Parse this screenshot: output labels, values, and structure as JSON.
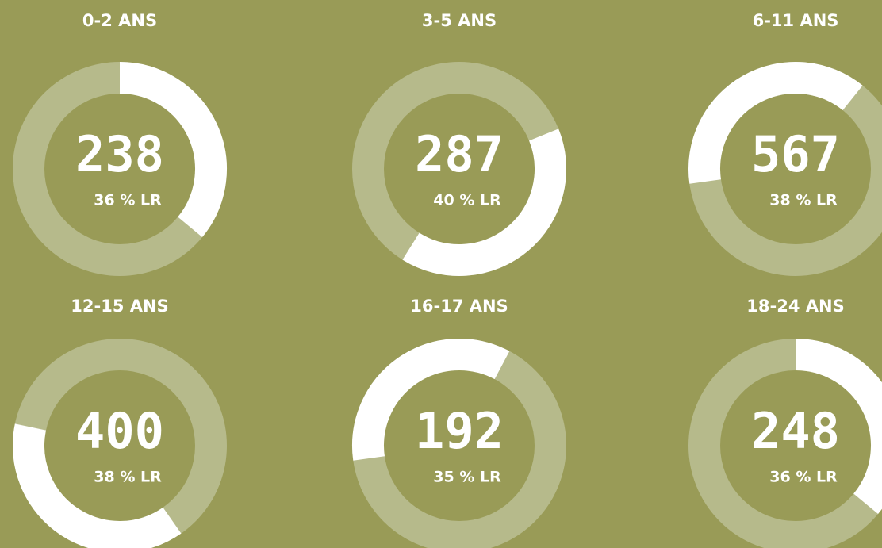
{
  "chart_data": [
    {
      "type": "donut",
      "title": "0-2 ANS",
      "total": 238,
      "value": 36,
      "value_label": "36 % LR",
      "color": "#ffffff",
      "track_color": "#b6ba8b"
    },
    {
      "type": "donut",
      "title": "3-5 ANS",
      "total": 287,
      "value": 40,
      "value_label": "40 % LR",
      "color": "#ffffff",
      "track_color": "#b6ba8b"
    },
    {
      "type": "donut",
      "title": "6-11 ANS",
      "total": 567,
      "value": 38,
      "value_label": "38 % LR",
      "color": "#ffffff",
      "track_color": "#b6ba8b"
    },
    {
      "type": "donut",
      "title": "12-15 ANS",
      "total": 400,
      "value": 38,
      "value_label": "38 % LR",
      "color": "#ffffff",
      "track_color": "#b6ba8b"
    },
    {
      "type": "donut",
      "title": "16-17 ANS",
      "total": 192,
      "value": 35,
      "value_label": "35 % LR",
      "color": "#ffffff",
      "track_color": "#b6ba8b"
    },
    {
      "type": "donut",
      "title": "18-24 ANS",
      "total": 248,
      "value": 36,
      "value_label": "36 % LR",
      "color": "#ffffff",
      "track_color": "#b6ba8b"
    }
  ]
}
